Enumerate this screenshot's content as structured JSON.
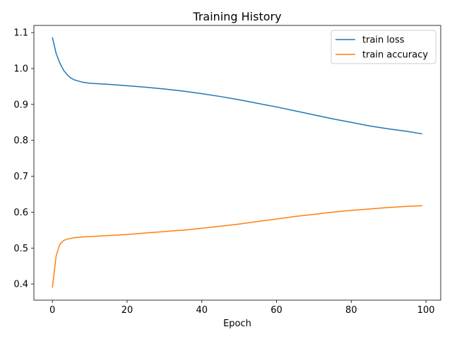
{
  "chart_data": {
    "type": "line",
    "title": "Training History",
    "xlabel": "Epoch",
    "ylabel": "",
    "xlim": [
      -4.95,
      103.95
    ],
    "ylim": [
      0.355,
      1.12
    ],
    "xticks": [
      0,
      20,
      40,
      60,
      80,
      100
    ],
    "yticks": [
      0.4,
      0.5,
      0.6,
      0.7,
      0.8,
      0.9,
      1.0,
      1.1
    ],
    "xtick_labels": [
      "0",
      "20",
      "40",
      "60",
      "80",
      "100"
    ],
    "ytick_labels": [
      "0.4",
      "0.5",
      "0.6",
      "0.7",
      "0.8",
      "0.9",
      "1.0",
      "1.1"
    ],
    "grid": false,
    "legend_position": "top-right",
    "series": [
      {
        "name": "train loss",
        "color": "#1f77b4",
        "x": [
          0,
          1,
          2,
          3,
          4,
          5,
          6,
          7,
          8,
          10,
          15,
          20,
          25,
          30,
          35,
          40,
          45,
          50,
          55,
          60,
          65,
          70,
          75,
          80,
          85,
          90,
          95,
          99
        ],
        "y": [
          1.087,
          1.042,
          1.015,
          0.995,
          0.982,
          0.973,
          0.968,
          0.965,
          0.962,
          0.959,
          0.956,
          0.952,
          0.948,
          0.943,
          0.937,
          0.93,
          0.922,
          0.913,
          0.903,
          0.893,
          0.882,
          0.871,
          0.86,
          0.85,
          0.84,
          0.832,
          0.825,
          0.818
        ]
      },
      {
        "name": "train accuracy",
        "color": "#ff7f0e",
        "x": [
          0,
          1,
          2,
          3,
          4,
          5,
          6,
          7,
          8,
          10,
          15,
          20,
          25,
          30,
          35,
          40,
          45,
          50,
          55,
          60,
          65,
          70,
          75,
          80,
          85,
          90,
          95,
          99
        ],
        "y": [
          0.39,
          0.478,
          0.511,
          0.521,
          0.525,
          0.527,
          0.529,
          0.53,
          0.531,
          0.532,
          0.535,
          0.538,
          0.542,
          0.546,
          0.55,
          0.555,
          0.561,
          0.567,
          0.574,
          0.581,
          0.588,
          0.594,
          0.6,
          0.605,
          0.609,
          0.613,
          0.616,
          0.618
        ]
      }
    ]
  }
}
